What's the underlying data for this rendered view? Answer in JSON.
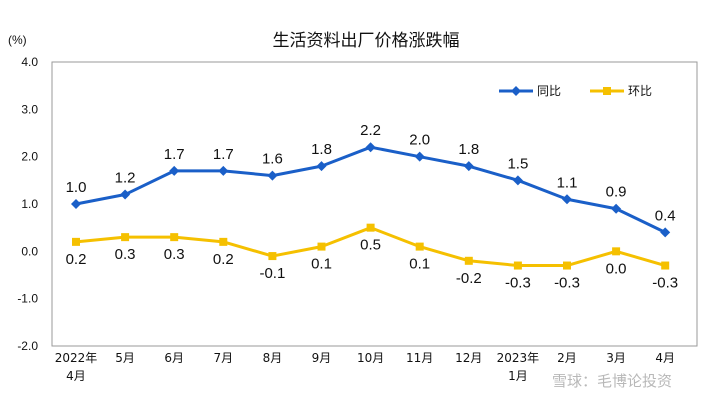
{
  "chart_data": {
    "type": "line",
    "title": "生活资料出厂价格涨跌幅",
    "unit_label": "(%)",
    "ylim": [
      -2.0,
      4.0
    ],
    "yticks": [
      "4.0",
      "3.0",
      "2.0",
      "1.0",
      "0.0",
      "-1.0",
      "-2.0"
    ],
    "categories": [
      [
        "2022年",
        "4月"
      ],
      [
        "5月"
      ],
      [
        "6月"
      ],
      [
        "7月"
      ],
      [
        "8月"
      ],
      [
        "9月"
      ],
      [
        "10月"
      ],
      [
        "11月"
      ],
      [
        "12月"
      ],
      [
        "2023年",
        "1月"
      ],
      [
        "2月"
      ],
      [
        "3月"
      ],
      [
        "4月"
      ]
    ],
    "series": [
      {
        "name": "同比",
        "color": "#1a5fc8",
        "marker": "diamond",
        "values": [
          1.0,
          1.2,
          1.7,
          1.7,
          1.6,
          1.8,
          2.2,
          2.0,
          1.8,
          1.5,
          1.1,
          0.9,
          0.4
        ],
        "labels": [
          "1.0",
          "1.2",
          "1.7",
          "1.7",
          "1.6",
          "1.8",
          "2.2",
          "2.0",
          "1.8",
          "1.5",
          "1.1",
          "0.9",
          "0.4"
        ]
      },
      {
        "name": "环比",
        "color": "#f5c000",
        "marker": "square",
        "values": [
          0.2,
          0.3,
          0.3,
          0.2,
          -0.1,
          0.1,
          0.5,
          0.1,
          -0.2,
          -0.3,
          -0.3,
          0.0,
          -0.3
        ],
        "labels": [
          "0.2",
          "0.3",
          "0.3",
          "0.2",
          "-0.1",
          "0.1",
          "0.5",
          "0.1",
          "-0.2",
          "-0.3",
          "-0.3",
          "0.0",
          "-0.3"
        ]
      }
    ],
    "legend_position": "top-right",
    "grid": false
  },
  "watermark": "雪球：毛博论投资"
}
